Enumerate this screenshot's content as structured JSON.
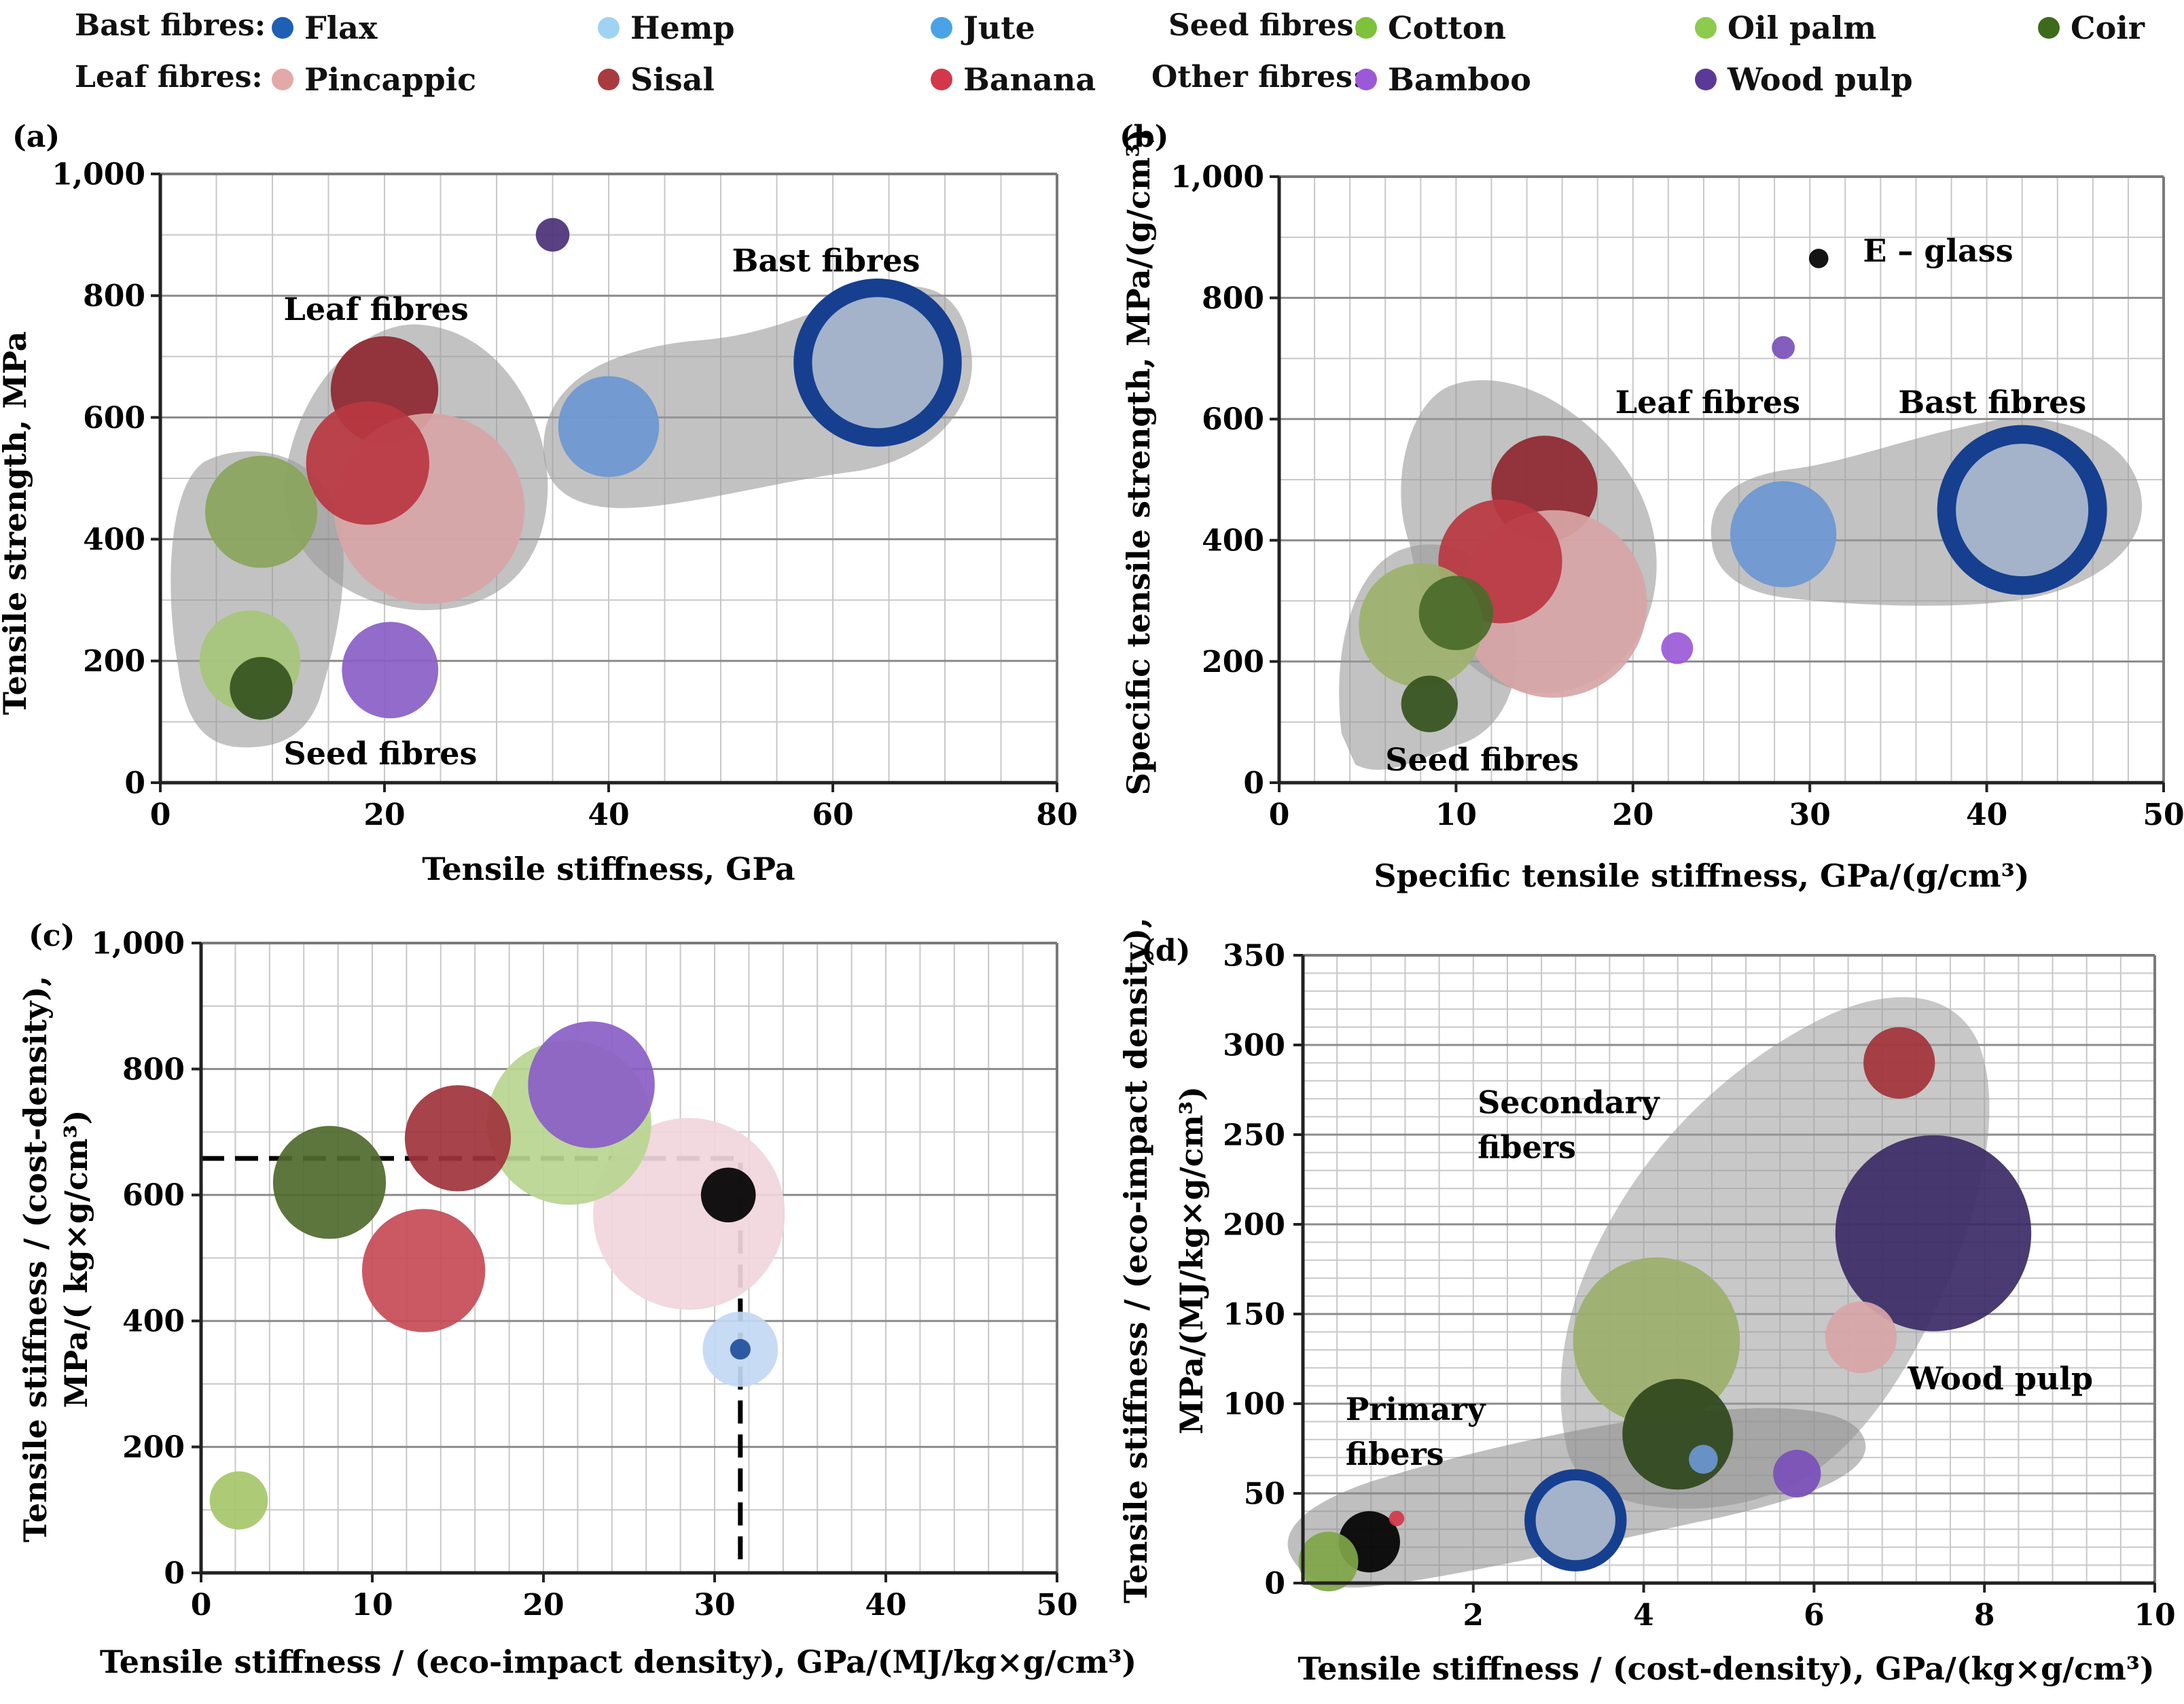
{
  "legend": {
    "groups": [
      {
        "label": "Bast fibres:",
        "items": [
          {
            "key": "flax",
            "label": "Flax",
            "color": "#1f5fb5"
          },
          {
            "key": "hemp",
            "label": "Hemp",
            "color": "#9fd3f3"
          },
          {
            "key": "jute",
            "label": "Jute",
            "color": "#4aa3e6"
          }
        ]
      },
      {
        "label": "Seed fibres:",
        "items": [
          {
            "key": "cotton",
            "label": "Cotton",
            "color": "#7ec23c"
          },
          {
            "key": "oilpalm",
            "label": "Oil palm",
            "color": "#8ccb4e"
          },
          {
            "key": "coir",
            "label": "Coir",
            "color": "#3d6b1c"
          }
        ]
      },
      {
        "label": "Leaf fibres:",
        "items": [
          {
            "key": "pineapple",
            "label": "Pincappic",
            "color": "#e3a9a8"
          },
          {
            "key": "sisal",
            "label": "Sisal",
            "color": "#a93a3f"
          },
          {
            "key": "banana",
            "label": "Banana",
            "color": "#d2384a"
          }
        ]
      },
      {
        "label": "Other fibres:",
        "items": [
          {
            "key": "bamboo",
            "label": "Bamboo",
            "color": "#9b59d8"
          },
          {
            "key": "woodpulp",
            "label": "Wood pulp",
            "color": "#5a3a96"
          }
        ]
      }
    ]
  },
  "chart_data": [
    {
      "id": "a",
      "panel_label": "(a)",
      "type": "scatter",
      "xlabel": "Tensile stiffness, GPa",
      "ylabel": "Tensile strength, MPa",
      "xlim": [
        0,
        80
      ],
      "ylim": [
        0,
        1000
      ],
      "xticks": [
        "0",
        "20",
        "40",
        "60",
        "80"
      ],
      "yticks": [
        "0",
        "200",
        "400",
        "600",
        "800",
        "1,000"
      ],
      "region_labels": [
        {
          "text": "Leaf fibres",
          "x": 11,
          "y": 760
        },
        {
          "text": "Bast fibres",
          "x": 51,
          "y": 840
        },
        {
          "text": "Seed fibres",
          "x": 11,
          "y": 30
        }
      ],
      "points": [
        {
          "fibre": "Wood pulp",
          "x": 35,
          "y": 900,
          "r": 1.5,
          "color": "#4a3078"
        },
        {
          "fibre": "Flax",
          "x": 64,
          "y": 690,
          "r": 7.5,
          "color": "#163f8f",
          "ring": true,
          "inner_color": "#a4b3c9"
        },
        {
          "fibre": "Jute",
          "x": 40,
          "y": 585,
          "r": 4.5,
          "color": "#6d97d3"
        },
        {
          "fibre": "Sisal",
          "x": 20,
          "y": 645,
          "r": 4.8,
          "color": "#8f2730"
        },
        {
          "fibre": "Pincappic",
          "x": 24,
          "y": 450,
          "r": 8.5,
          "color": "#d8a5a6"
        },
        {
          "fibre": "Banana",
          "x": 18.5,
          "y": 525,
          "r": 5.5,
          "color": "#b93741"
        },
        {
          "fibre": "Oil palm",
          "x": 9,
          "y": 445,
          "r": 5,
          "color": "#8aa55c"
        },
        {
          "fibre": "Cotton",
          "x": 8,
          "y": 200,
          "r": 4.5,
          "color": "#a6c77a"
        },
        {
          "fibre": "Coir",
          "x": 9,
          "y": 155,
          "r": 2.8,
          "color": "#35531d"
        },
        {
          "fibre": "Bamboo",
          "x": 20.5,
          "y": 185,
          "r": 4.3,
          "color": "#8a5ec7"
        }
      ]
    },
    {
      "id": "b",
      "panel_label": "(b)",
      "type": "scatter",
      "xlabel": "Specific tensile stiffness, GPa/(g/cm³)",
      "ylabel": "Specific tensile strength, MPa/(g/cm³)",
      "xlim": [
        0,
        50
      ],
      "ylim": [
        0,
        1000
      ],
      "xticks": [
        "0",
        "10",
        "20",
        "30",
        "40",
        "50"
      ],
      "yticks": [
        "0",
        "200",
        "400",
        "600",
        "800",
        "1,000"
      ],
      "region_labels": [
        {
          "text": "Leaf fibres",
          "x": 19,
          "y": 610
        },
        {
          "text": "Bast fibres",
          "x": 35,
          "y": 610
        },
        {
          "text": "Seed fibres",
          "x": 6,
          "y": 20
        },
        {
          "text": "E – glass",
          "x": 33,
          "y": 860
        }
      ],
      "points": [
        {
          "fibre": "E – glass",
          "x": 30.5,
          "y": 865,
          "r": 0.55,
          "color": "#000000"
        },
        {
          "fibre": "Wood pulp",
          "x": 28.5,
          "y": 718,
          "r": 0.65,
          "color": "#7a4fb8"
        },
        {
          "fibre": "Flax",
          "x": 42,
          "y": 450,
          "r": 4.8,
          "color": "#163f8f",
          "ring": true,
          "inner_color": "#a4b3c9"
        },
        {
          "fibre": "Jute",
          "x": 28.5,
          "y": 410,
          "r": 3,
          "color": "#6d97d3"
        },
        {
          "fibre": "Sisal",
          "x": 15,
          "y": 485,
          "r": 3,
          "color": "#8f2730"
        },
        {
          "fibre": "Pincappic",
          "x": 15.5,
          "y": 295,
          "r": 5.3,
          "color": "#d8a5a6"
        },
        {
          "fibre": "Banana",
          "x": 12.5,
          "y": 365,
          "r": 3.5,
          "color": "#b93741"
        },
        {
          "fibre": "Oil palm",
          "x": 8,
          "y": 260,
          "r": 3.5,
          "color": "#9db26e"
        },
        {
          "fibre": "Cotton",
          "x": 10,
          "y": 280,
          "r": 2.1,
          "color": "#4a6a2a"
        },
        {
          "fibre": "Coir",
          "x": 8.5,
          "y": 130,
          "r": 1.6,
          "color": "#35531d"
        },
        {
          "fibre": "Bamboo",
          "x": 22.5,
          "y": 222,
          "r": 0.9,
          "color": "#9b59d8"
        }
      ]
    },
    {
      "id": "c",
      "panel_label": "(c)",
      "type": "scatter",
      "xlabel": "Tensile stiffness / (eco-impact density), GPa/(MJ/kg×g/cm³)",
      "ylabel": "Tensile stiffness / (cost-density), MPa/( kg×g/cm³)",
      "xlim": [
        0,
        50
      ],
      "ylim": [
        0,
        1000
      ],
      "xticks": [
        "0",
        "10",
        "20",
        "30",
        "40",
        "50"
      ],
      "yticks": [
        "0",
        "200",
        "400",
        "600",
        "800",
        "1,000"
      ],
      "reference_lines": {
        "y": 658,
        "x": 31.5
      },
      "points": [
        {
          "fibre": "Pincappic",
          "x": 28.5,
          "y": 570,
          "r": 5.6,
          "color": "#f0d6dc"
        },
        {
          "fibre": "Oil palm",
          "x": 21.5,
          "y": 715,
          "r": 4.8,
          "color": "#b8d590"
        },
        {
          "fibre": "Bamboo",
          "x": 22.8,
          "y": 775,
          "r": 3.7,
          "color": "#8a5ec7"
        },
        {
          "fibre": "Sisal",
          "x": 15,
          "y": 690,
          "r": 3.1,
          "color": "#a0333c"
        },
        {
          "fibre": "Coir",
          "x": 7.5,
          "y": 620,
          "r": 3.3,
          "color": "#4e6a2c"
        },
        {
          "fibre": "Banana",
          "x": 13,
          "y": 480,
          "r": 3.6,
          "color": "#c64b56"
        },
        {
          "fibre": "E – glass",
          "x": 30.8,
          "y": 600,
          "r": 1.6,
          "color": "#000000"
        },
        {
          "fibre": "Hemp",
          "x": 31.5,
          "y": 355,
          "r": 2.2,
          "color": "#c3d8f4"
        },
        {
          "fibre": "Flax",
          "x": 31.5,
          "y": 355,
          "r": 0.6,
          "color": "#1f4f9c"
        },
        {
          "fibre": "Cotton",
          "x": 2.2,
          "y": 115,
          "r": 1.7,
          "color": "#a6c76a"
        }
      ]
    },
    {
      "id": "d",
      "panel_label": "(d)",
      "type": "scatter",
      "xlabel": "Tensile stiffness / (cost-density), GPa/(kg×g/cm³)",
      "ylabel": "Tensile stiffness / (eco-impact density), MPa/(MJ/kg×g/cm³)",
      "xlim": [
        0,
        10
      ],
      "ylim": [
        0,
        350
      ],
      "xticks": [
        "2",
        "4",
        "6",
        "8",
        "10"
      ],
      "yticks": [
        "0",
        "50",
        "100",
        "150",
        "200",
        "250",
        "300",
        "350"
      ],
      "region_labels": [
        {
          "text": "Secondary",
          "x": 2.05,
          "y": 262
        },
        {
          "text": "fibers",
          "x": 2.05,
          "y": 237
        },
        {
          "text": "Primary",
          "x": 0.5,
          "y": 91
        },
        {
          "text": "fibers",
          "x": 0.5,
          "y": 66
        },
        {
          "text": "Wood pulp",
          "x": 7.1,
          "y": 108
        }
      ],
      "points": [
        {
          "fibre": "Sisal",
          "x": 7.0,
          "y": 290,
          "r": 0.42,
          "color": "#a3323b"
        },
        {
          "fibre": "Wood pulp",
          "x": 7.4,
          "y": 195,
          "r": 1.15,
          "color": "#3b2a66"
        },
        {
          "fibre": "Pincappic",
          "x": 6.55,
          "y": 137,
          "r": 0.42,
          "color": "#d8a5a6"
        },
        {
          "fibre": "Oil palm",
          "x": 4.15,
          "y": 135,
          "r": 0.98,
          "color": "#9bb06d"
        },
        {
          "fibre": "Coir",
          "x": 4.4,
          "y": 83,
          "r": 0.65,
          "color": "#2f461c"
        },
        {
          "fibre": "Jute",
          "x": 4.7,
          "y": 69,
          "r": 0.17,
          "color": "#6d97d3"
        },
        {
          "fibre": "Bamboo",
          "x": 5.8,
          "y": 61,
          "r": 0.28,
          "color": "#7a4fb8"
        },
        {
          "fibre": "Flax",
          "x": 3.2,
          "y": 35,
          "r": 0.6,
          "color": "#163f8f",
          "ring": true,
          "inner_color": "#a4b3c9"
        },
        {
          "fibre": "E – glass",
          "x": 0.78,
          "y": 23,
          "r": 0.36,
          "color": "#000000"
        },
        {
          "fibre": "Banana",
          "x": 1.1,
          "y": 36,
          "r": 0.09,
          "color": "#d2384a"
        },
        {
          "fibre": "Cotton",
          "x": 0.3,
          "y": 12,
          "r": 0.35,
          "color": "#7ea648"
        }
      ]
    }
  ]
}
